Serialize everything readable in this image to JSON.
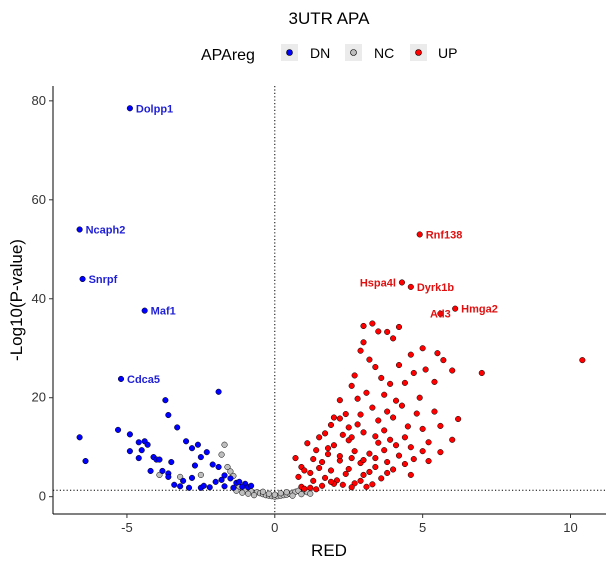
{
  "chart_data": {
    "type": "scatter",
    "title": "3UTR APA",
    "xlabel": "RED",
    "ylabel": "-Log10(P-value)",
    "xlim": [
      -7.5,
      11.2
    ],
    "ylim": [
      -3.5,
      83
    ],
    "xticks": [
      -5,
      0,
      5,
      10
    ],
    "yticks": [
      0,
      20,
      40,
      60,
      80
    ],
    "grid": false,
    "reference_lines": {
      "vertical_x": 0,
      "horizontal_y": 1.3
    },
    "legend": {
      "title": "APAreg",
      "placement": "top",
      "entries": [
        {
          "label": "DN",
          "group": "DN"
        },
        {
          "label": "NC",
          "group": "NC"
        },
        {
          "label": "UP",
          "group": "UP"
        }
      ]
    },
    "colors": {
      "DN": "#0000ff",
      "NC": "#bebebe",
      "UP": "#ff0000",
      "outline": "#000000"
    },
    "labeled_points": [
      {
        "label": "Dolpp1",
        "x": -4.9,
        "y": 78.5,
        "group": "DN"
      },
      {
        "label": "Ncaph2",
        "x": -6.6,
        "y": 54.0,
        "group": "DN"
      },
      {
        "label": "Snrpf",
        "x": -6.5,
        "y": 44.0,
        "group": "DN"
      },
      {
        "label": "Maf1",
        "x": -4.4,
        "y": 37.6,
        "group": "DN"
      },
      {
        "label": "Cdca5",
        "x": -5.2,
        "y": 23.8,
        "group": "DN"
      },
      {
        "label": "Rnf138",
        "x": 4.9,
        "y": 53.0,
        "group": "UP"
      },
      {
        "label": "Hspa4l",
        "x": 4.3,
        "y": 43.3,
        "group": "UP"
      },
      {
        "label": "Dyrk1b",
        "x": 4.6,
        "y": 42.4,
        "group": "UP"
      },
      {
        "label": "Hmga2",
        "x": 6.1,
        "y": 38.0,
        "group": "UP"
      },
      {
        "label": "Atl3",
        "x": 5.6,
        "y": 37.0,
        "group": "UP"
      }
    ],
    "points": {
      "DN": [
        [
          -6.6,
          12.0
        ],
        [
          -6.4,
          7.2
        ],
        [
          -5.3,
          13.5
        ],
        [
          -4.9,
          12.6
        ],
        [
          -4.6,
          11.0
        ],
        [
          -4.4,
          11.2
        ],
        [
          -4.5,
          9.4
        ],
        [
          -4.3,
          10.5
        ],
        [
          -4.1,
          8.0
        ],
        [
          -4.9,
          9.2
        ],
        [
          -4.6,
          7.8
        ],
        [
          -4.0,
          7.5
        ],
        [
          -3.8,
          5.2
        ],
        [
          -3.6,
          4.7
        ],
        [
          -3.7,
          19.5
        ],
        [
          -3.6,
          16.5
        ],
        [
          -3.3,
          14.0
        ],
        [
          -3.0,
          11.2
        ],
        [
          -2.8,
          9.8
        ],
        [
          -2.6,
          10.5
        ],
        [
          -2.5,
          8.0
        ],
        [
          -2.3,
          9.0
        ],
        [
          -2.1,
          6.5
        ],
        [
          -1.9,
          21.2
        ],
        [
          -1.9,
          6.0
        ],
        [
          -1.7,
          4.3
        ],
        [
          -1.5,
          3.7
        ],
        [
          -1.3,
          2.8
        ],
        [
          -1.2,
          3.0
        ],
        [
          -1.0,
          2.6
        ],
        [
          -0.9,
          1.9
        ],
        [
          -0.8,
          2.2
        ],
        [
          -1.7,
          2.1
        ],
        [
          -2.2,
          1.9
        ],
        [
          -2.5,
          1.8
        ],
        [
          -2.9,
          1.8
        ],
        [
          -3.2,
          2.1
        ],
        [
          -3.4,
          2.4
        ],
        [
          -3.6,
          4.0
        ],
        [
          -2.8,
          3.8
        ],
        [
          -2.0,
          3.0
        ],
        [
          -1.4,
          1.8
        ],
        [
          -3.1,
          3.2
        ],
        [
          -2.4,
          2.2
        ],
        [
          -1.8,
          3.4
        ],
        [
          -1.1,
          2.0
        ],
        [
          -4.2,
          5.2
        ],
        [
          -2.7,
          6.3
        ],
        [
          -3.5,
          7.0
        ],
        [
          -3.9,
          7.5
        ]
      ],
      "NC": [
        [
          -1.7,
          10.5
        ],
        [
          -1.8,
          8.5
        ],
        [
          -1.6,
          6.0
        ],
        [
          -1.5,
          5.1
        ],
        [
          -1.4,
          4.2
        ],
        [
          -2.5,
          4.4
        ],
        [
          -3.2,
          4.0
        ],
        [
          -3.9,
          4.4
        ],
        [
          -1.2,
          2.0
        ],
        [
          -1.0,
          1.3
        ],
        [
          -0.8,
          1.1
        ],
        [
          -0.6,
          0.9
        ],
        [
          -0.5,
          0.7
        ],
        [
          -0.4,
          0.5
        ],
        [
          -0.3,
          0.3
        ],
        [
          -0.2,
          0.2
        ],
        [
          -0.1,
          0.1
        ],
        [
          0.0,
          0.0
        ],
        [
          0.1,
          0.1
        ],
        [
          0.2,
          0.2
        ],
        [
          0.3,
          0.3
        ],
        [
          0.4,
          0.4
        ],
        [
          0.5,
          0.6
        ],
        [
          0.6,
          0.8
        ],
        [
          0.7,
          1.0
        ],
        [
          0.8,
          1.2
        ],
        [
          1.0,
          1.1
        ],
        [
          0.9,
          0.5
        ],
        [
          -0.9,
          0.6
        ],
        [
          -0.7,
          0.3
        ],
        [
          0.6,
          0.2
        ],
        [
          -0.2,
          0.6
        ],
        [
          0.4,
          0.9
        ],
        [
          1.1,
          0.9
        ],
        [
          -1.1,
          0.8
        ],
        [
          -1.3,
          1.2
        ],
        [
          1.2,
          0.6
        ],
        [
          -0.4,
          1.0
        ],
        [
          0.2,
          0.7
        ],
        [
          0.0,
          0.4
        ]
      ],
      "UP": [
        [
          10.4,
          27.6
        ],
        [
          7.0,
          25.0
        ],
        [
          6.0,
          25.5
        ],
        [
          5.4,
          23.2
        ],
        [
          5.7,
          27.6
        ],
        [
          5.0,
          30.0
        ],
        [
          5.5,
          29.0
        ],
        [
          4.6,
          28.7
        ],
        [
          4.2,
          26.6
        ],
        [
          4.7,
          25.0
        ],
        [
          5.1,
          25.7
        ],
        [
          3.3,
          35.0
        ],
        [
          3.5,
          33.4
        ],
        [
          3.0,
          34.5
        ],
        [
          3.8,
          33.3
        ],
        [
          4.2,
          34.3
        ],
        [
          4.0,
          32.0
        ],
        [
          3.0,
          31.2
        ],
        [
          2.9,
          29.5
        ],
        [
          3.2,
          27.7
        ],
        [
          3.4,
          26.2
        ],
        [
          2.7,
          24.5
        ],
        [
          2.6,
          22.4
        ],
        [
          3.6,
          24.0
        ],
        [
          3.9,
          22.8
        ],
        [
          4.4,
          23.0
        ],
        [
          3.1,
          21.0
        ],
        [
          2.8,
          19.8
        ],
        [
          2.2,
          19.5
        ],
        [
          3.7,
          20.6
        ],
        [
          4.1,
          19.4
        ],
        [
          3.3,
          18.0
        ],
        [
          2.9,
          16.6
        ],
        [
          2.2,
          15.8
        ],
        [
          1.9,
          14.5
        ],
        [
          2.5,
          14.0
        ],
        [
          3.0,
          13.0
        ],
        [
          3.5,
          15.4
        ],
        [
          4.0,
          16.0
        ],
        [
          4.5,
          14.2
        ],
        [
          5.0,
          13.7
        ],
        [
          3.5,
          10.9
        ],
        [
          3.9,
          11.5
        ],
        [
          4.4,
          12.0
        ],
        [
          5.2,
          11.0
        ],
        [
          2.5,
          11.4
        ],
        [
          2.0,
          10.4
        ],
        [
          1.8,
          9.8
        ],
        [
          1.5,
          12.0
        ],
        [
          2.7,
          9.2
        ],
        [
          3.2,
          8.7
        ],
        [
          3.7,
          9.4
        ],
        [
          4.2,
          8.3
        ],
        [
          4.7,
          7.6
        ],
        [
          1.3,
          7.6
        ],
        [
          1.6,
          7.0
        ],
        [
          2.2,
          7.3
        ],
        [
          2.9,
          6.8
        ],
        [
          3.4,
          6.0
        ],
        [
          4.0,
          5.5
        ],
        [
          0.9,
          6.0
        ],
        [
          1.2,
          4.8
        ],
        [
          1.9,
          5.3
        ],
        [
          2.4,
          4.6
        ],
        [
          3.0,
          4.4
        ],
        [
          3.6,
          3.7
        ],
        [
          0.8,
          4.0
        ],
        [
          1.3,
          3.2
        ],
        [
          1.7,
          3.8
        ],
        [
          2.1,
          3.3
        ],
        [
          2.7,
          2.7
        ],
        [
          3.3,
          2.5
        ],
        [
          0.9,
          2.0
        ],
        [
          1.2,
          1.8
        ],
        [
          1.6,
          2.2
        ],
        [
          2.0,
          2.6
        ],
        [
          2.6,
          1.9
        ],
        [
          3.1,
          2.0
        ],
        [
          1.0,
          1.6
        ],
        [
          1.4,
          1.5
        ],
        [
          2.4,
          16.7
        ],
        [
          2.0,
          16.0
        ],
        [
          1.7,
          12.8
        ],
        [
          3.8,
          17.2
        ],
        [
          4.3,
          18.4
        ],
        [
          4.8,
          16.8
        ],
        [
          5.6,
          14.3
        ],
        [
          5.4,
          17.2
        ],
        [
          6.2,
          15.7
        ],
        [
          4.9,
          20.0
        ],
        [
          2.3,
          12.5
        ],
        [
          2.6,
          12.0
        ],
        [
          2.8,
          14.6
        ],
        [
          3.4,
          12.2
        ],
        [
          3.7,
          13.4
        ],
        [
          4.1,
          10.4
        ],
        [
          4.6,
          10.0
        ],
        [
          5.0,
          9.2
        ],
        [
          1.1,
          10.8
        ],
        [
          0.7,
          7.8
        ],
        [
          1.4,
          9.4
        ],
        [
          1.8,
          8.6
        ],
        [
          2.2,
          8.2
        ],
        [
          2.6,
          7.8
        ],
        [
          3.0,
          7.4
        ],
        [
          3.4,
          7.8
        ],
        [
          3.8,
          7.0
        ],
        [
          4.4,
          6.6
        ],
        [
          5.2,
          7.2
        ],
        [
          5.6,
          9.0
        ],
        [
          6.0,
          11.5
        ],
        [
          1.0,
          5.3
        ],
        [
          1.5,
          5.8
        ],
        [
          2.5,
          5.6
        ],
        [
          3.2,
          5.0
        ],
        [
          3.8,
          4.8
        ],
        [
          4.6,
          4.4
        ],
        [
          1.9,
          3.0
        ],
        [
          2.3,
          2.4
        ],
        [
          2.9,
          3.2
        ]
      ]
    }
  }
}
